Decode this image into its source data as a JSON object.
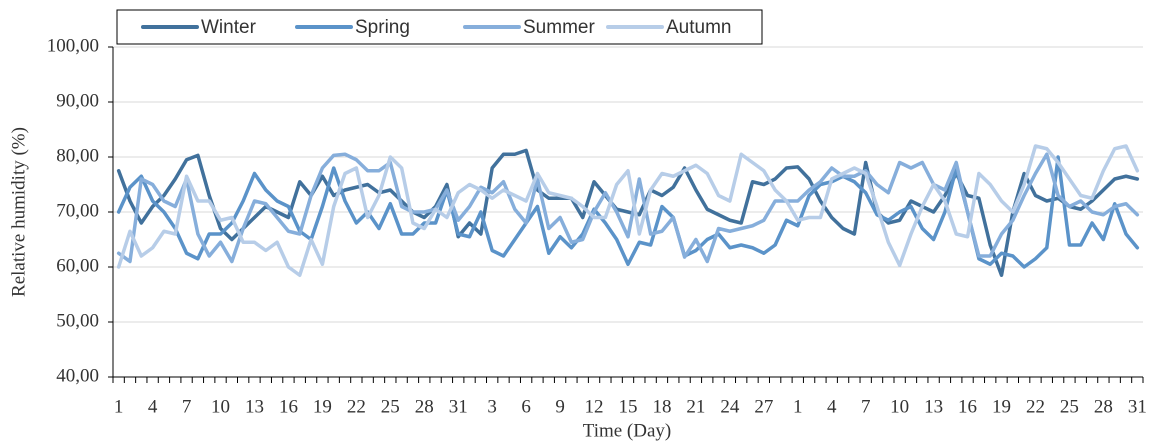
{
  "chart_data": {
    "type": "line",
    "x_label": "Time (Day)",
    "y_label": "Relative humidity (%)",
    "categories": [
      "1",
      null,
      null,
      "4",
      null,
      null,
      "7",
      null,
      null,
      "10",
      null,
      null,
      "13",
      null,
      null,
      "16",
      null,
      null,
      "19",
      null,
      null,
      "22",
      null,
      null,
      "25",
      null,
      null,
      "28",
      null,
      null,
      "31",
      null,
      null,
      "3",
      null,
      null,
      "6",
      null,
      null,
      "9",
      null,
      null,
      "12",
      null,
      null,
      "15",
      null,
      null,
      "18",
      null,
      null,
      "21",
      null,
      null,
      "24",
      null,
      null,
      "27",
      null,
      null,
      "1",
      null,
      null,
      "4",
      null,
      null,
      "7",
      null,
      null,
      "10",
      null,
      null,
      "13",
      null,
      null,
      "16",
      null,
      null,
      "19",
      null,
      null,
      "22",
      null,
      null,
      "25",
      null,
      null,
      "28",
      null,
      null,
      "31"
    ],
    "series": [
      {
        "name": "Winter",
        "color": "#41719c",
        "values": [
          77.5,
          72,
          68,
          71,
          73,
          76,
          79.5,
          80.3,
          73,
          67,
          65,
          67,
          69,
          71,
          70,
          69,
          75.5,
          73,
          76.5,
          73,
          74,
          74.5,
          75,
          73.5,
          74,
          72,
          70,
          69,
          71,
          75,
          65.5,
          68,
          66,
          78,
          80.5,
          80.5,
          81.2,
          74,
          72.5,
          72.5,
          72.5,
          69,
          75.5,
          73,
          70.5,
          70,
          69.5,
          74,
          73,
          74.5,
          78,
          74,
          70.5,
          69.5,
          68.5,
          68,
          75.5,
          75,
          76,
          78,
          78.2,
          76,
          72,
          69,
          67,
          66,
          79,
          70,
          68,
          68.5,
          72,
          71,
          70,
          73,
          77,
          73,
          72.5,
          64,
          58.5,
          70,
          77,
          73,
          72,
          72.5,
          71,
          70.5,
          72,
          74,
          76,
          76.5,
          76
        ]
      },
      {
        "name": "Spring",
        "color": "#5b93c9",
        "values": [
          70,
          74.5,
          76.5,
          72,
          70,
          67,
          62.5,
          61.5,
          66,
          66,
          68,
          72,
          77,
          74,
          72,
          71,
          66.5,
          65,
          71,
          78,
          72,
          68,
          70,
          67,
          71.5,
          66,
          66,
          68,
          68,
          74,
          66,
          65.5,
          70,
          63,
          62,
          65,
          68,
          71,
          62.5,
          65.5,
          63.5,
          66,
          70.5,
          68,
          65,
          60.5,
          64.5,
          64,
          71,
          69,
          62,
          63,
          65,
          66,
          63.5,
          64,
          63.5,
          62.5,
          64,
          68.5,
          67.5,
          73,
          75,
          75.5,
          76.5,
          75.5,
          73.5,
          69.5,
          68.5,
          70,
          71,
          67,
          65,
          70,
          78,
          70,
          61.5,
          60.5,
          62.5,
          62,
          60,
          61.5,
          63.5,
          80,
          64,
          64,
          68,
          65,
          71.5,
          66,
          63.5
        ]
      },
      {
        "name": "Summer",
        "color": "#86aedb",
        "values": [
          62.5,
          61,
          76,
          75,
          72,
          71,
          76,
          66,
          62,
          64.5,
          61,
          67,
          72,
          71.5,
          69,
          66.5,
          66,
          73,
          78,
          80.3,
          80.5,
          79.5,
          77.5,
          77.5,
          79,
          71,
          70,
          70,
          70.5,
          74,
          68.5,
          71,
          74.5,
          73.5,
          75.5,
          70.5,
          68,
          76,
          67,
          69,
          64.5,
          65,
          70,
          73.5,
          70,
          65.5,
          76,
          66,
          66.5,
          69,
          61.8,
          65,
          61,
          67,
          66.5,
          67,
          67.5,
          68.5,
          72,
          72,
          72,
          74,
          75.5,
          78,
          76.5,
          76.5,
          77.5,
          75,
          73.5,
          79,
          78,
          79,
          75,
          74,
          79,
          70,
          62,
          62,
          66,
          68.5,
          73,
          77,
          80.5,
          73,
          71,
          72,
          70,
          69.5,
          71,
          71.5,
          69.5
        ]
      },
      {
        "name": "Autumn",
        "color": "#b7cde8",
        "values": [
          60,
          66.5,
          62,
          63.5,
          66.5,
          66,
          76.5,
          72,
          72,
          68.5,
          69,
          64.5,
          64.5,
          63,
          64.5,
          60,
          58.5,
          65,
          60.5,
          71,
          77,
          78,
          69,
          73,
          80,
          78,
          68,
          67,
          70.5,
          69,
          73.5,
          75,
          74,
          72.5,
          74,
          73,
          72,
          77,
          73.5,
          73,
          72.5,
          71,
          69,
          69,
          75,
          77.5,
          66,
          74,
          77,
          76.5,
          77.5,
          78.5,
          77,
          73,
          72,
          80.5,
          79,
          77.5,
          74,
          72,
          68.5,
          69,
          69,
          76,
          77,
          78,
          77,
          71,
          64.5,
          60.3,
          66,
          71,
          75,
          72,
          66,
          65.5,
          77,
          75,
          72,
          70,
          75,
          82,
          81.5,
          79,
          76,
          73,
          72.5,
          77.5,
          81.5,
          82,
          77.5
        ]
      }
    ],
    "ylim": [
      40,
      100
    ],
    "yticks": [
      {
        "value": 40,
        "label": "40,00"
      },
      {
        "value": 50,
        "label": "50,00"
      },
      {
        "value": 60,
        "label": "60,00"
      },
      {
        "value": 70,
        "label": "70,00"
      },
      {
        "value": 80,
        "label": "80,00"
      },
      {
        "value": 90,
        "label": "90,00"
      },
      {
        "value": 100,
        "label": "100,00"
      }
    ],
    "grid": true,
    "legend": "top"
  }
}
